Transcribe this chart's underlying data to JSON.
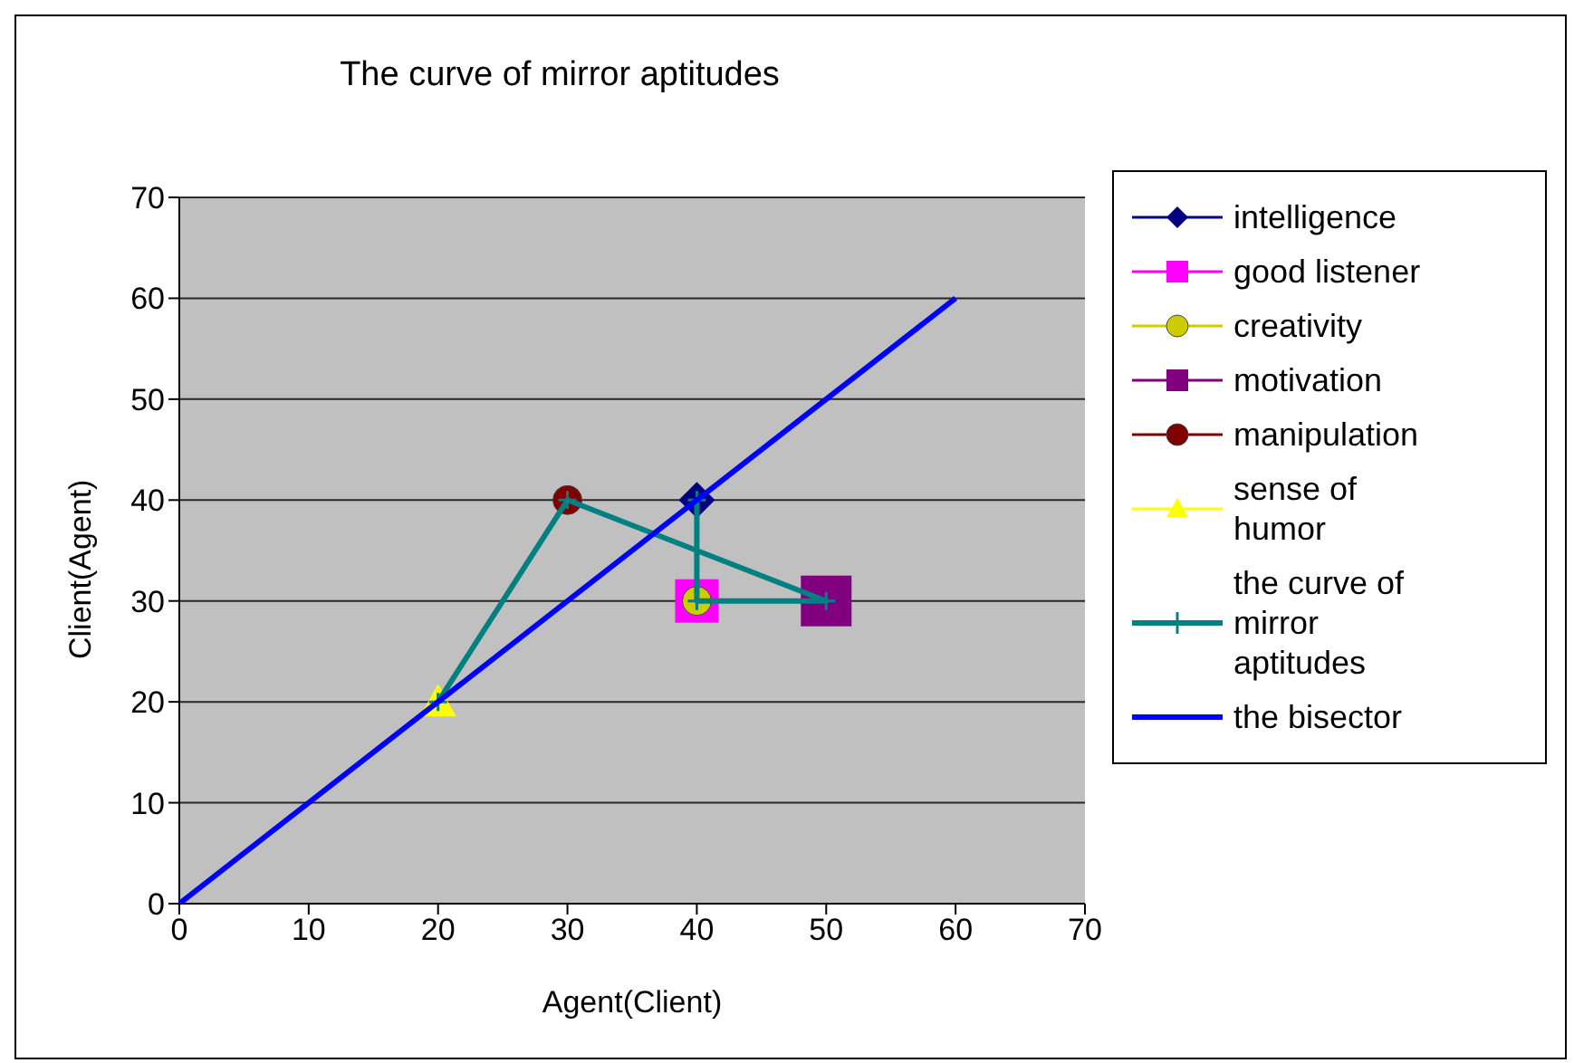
{
  "chart_data": {
    "type": "scatter",
    "title": "The curve of mirror aptitudes",
    "xlabel": "Agent(Client)",
    "ylabel": "Client(Agent)",
    "xlim": [
      0,
      70
    ],
    "xticks": [
      0,
      10,
      20,
      30,
      40,
      50,
      60,
      70
    ],
    "ylim": [
      0,
      70
    ],
    "yticks": [
      0,
      10,
      20,
      30,
      40,
      50,
      60,
      70
    ],
    "grid": "y",
    "legend": "right",
    "series": [
      {
        "name": "intelligence",
        "color": "#000080",
        "type": "scatter",
        "marker": "diamond",
        "x": [
          40
        ],
        "values": [
          40
        ]
      },
      {
        "name": "good listener",
        "color": "#ff00ff",
        "type": "scatter",
        "marker": "square",
        "x": [
          40
        ],
        "values": [
          30
        ]
      },
      {
        "name": "creativity",
        "color": "#cccc00",
        "type": "scatter",
        "marker": "circle",
        "x": [
          40
        ],
        "values": [
          30
        ]
      },
      {
        "name": "motivation",
        "color": "#800080",
        "type": "scatter",
        "marker": "square",
        "x": [
          50
        ],
        "values": [
          30
        ]
      },
      {
        "name": "manipulation",
        "color": "#800000",
        "type": "scatter",
        "marker": "circle",
        "x": [
          30
        ],
        "values": [
          40
        ]
      },
      {
        "name": "sense of humor",
        "color": "#ffff00",
        "type": "scatter",
        "marker": "triangle",
        "x": [
          20
        ],
        "values": [
          20
        ]
      },
      {
        "name": "the curve of mirror aptitudes",
        "color": "#008080",
        "type": "line",
        "marker": "cross",
        "x": [
          20,
          30,
          50,
          40,
          40
        ],
        "values": [
          20,
          40,
          30,
          30,
          40
        ]
      },
      {
        "name": "the bisector",
        "color": "#0000ff",
        "type": "line",
        "marker": "none",
        "x": [
          0,
          60
        ],
        "values": [
          0,
          60
        ]
      }
    ]
  }
}
